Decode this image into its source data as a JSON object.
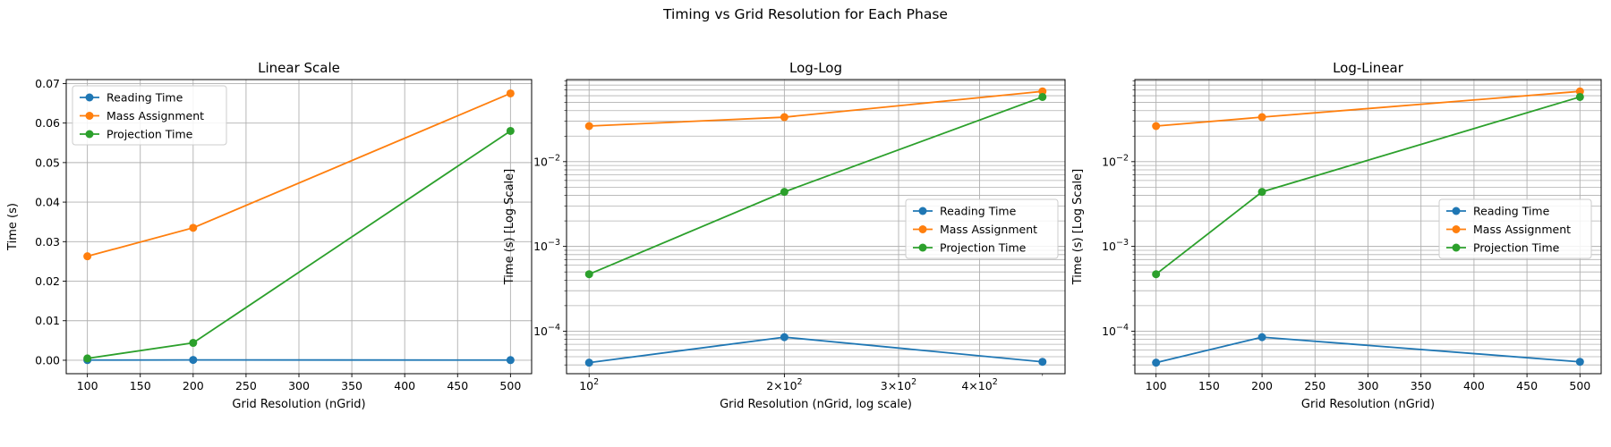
{
  "figure": {
    "suptitle": "Timing vs Grid Resolution for Each Phase"
  },
  "colors": {
    "reading": "#1f77b4",
    "mass": "#ff7f0e",
    "projection": "#2ca02c",
    "grid": "#b0b0b0"
  },
  "chart_data": [
    {
      "type": "line",
      "title": "Linear Scale",
      "xlabel": "Grid Resolution (nGrid)",
      "ylabel": "Time (s)",
      "xscale": "linear",
      "yscale": "linear",
      "xlim": [
        80,
        520
      ],
      "ylim": [
        -0.0034,
        0.071
      ],
      "xticks": [
        100,
        150,
        200,
        250,
        300,
        350,
        400,
        450,
        500
      ],
      "xticklabels": [
        "100",
        "150",
        "200",
        "250",
        "300",
        "350",
        "400",
        "450",
        "500"
      ],
      "yticks": [
        0,
        0.01,
        0.02,
        0.03,
        0.04,
        0.05,
        0.06,
        0.07
      ],
      "yticklabels": [
        "0.00",
        "0.01",
        "0.02",
        "0.03",
        "0.04",
        "0.05",
        "0.06",
        "0.07"
      ],
      "grid": true,
      "legend_position": "upper-left",
      "x": [
        100,
        200,
        500
      ],
      "series": [
        {
          "name": "Reading Time",
          "color_key": "reading",
          "values": [
            4.25e-05,
            8.5e-05,
            4.35e-05
          ]
        },
        {
          "name": "Mass Assignment",
          "color_key": "mass",
          "values": [
            0.0263,
            0.0335,
            0.0675
          ]
        },
        {
          "name": "Projection Time",
          "color_key": "projection",
          "values": [
            0.00047,
            0.0044,
            0.058
          ]
        }
      ]
    },
    {
      "type": "line",
      "title": "Log-Log",
      "xlabel": "Grid Resolution (nGrid, log scale)",
      "ylabel": "Time (s) [Log Scale]",
      "xscale": "log",
      "yscale": "log",
      "xlim": [
        92.3,
        541.7
      ],
      "ylim": [
        3.15e-05,
        0.093
      ],
      "xticks": [
        100,
        200,
        300,
        400
      ],
      "xticklabels": [
        "10^2",
        "2×10^2",
        "3×10^2",
        "4×10^2"
      ],
      "yticks": [
        0.0001,
        0.001,
        0.01
      ],
      "yticklabels": [
        "10^−4",
        "10^−3",
        "10^−2"
      ],
      "grid": true,
      "grid_minor": true,
      "legend_position": "center-right",
      "x": [
        100,
        200,
        500
      ],
      "series": [
        {
          "name": "Reading Time",
          "color_key": "reading",
          "values": [
            4.25e-05,
            8.5e-05,
            4.35e-05
          ]
        },
        {
          "name": "Mass Assignment",
          "color_key": "mass",
          "values": [
            0.0263,
            0.0335,
            0.0675
          ]
        },
        {
          "name": "Projection Time",
          "color_key": "projection",
          "values": [
            0.00047,
            0.0044,
            0.058
          ]
        }
      ]
    },
    {
      "type": "line",
      "title": "Log-Linear",
      "xlabel": "Grid Resolution (nGrid)",
      "ylabel": "Time (s) [Log Scale]",
      "xscale": "linear",
      "yscale": "log",
      "xlim": [
        80,
        520
      ],
      "ylim": [
        3.15e-05,
        0.093
      ],
      "xticks": [
        100,
        150,
        200,
        250,
        300,
        350,
        400,
        450,
        500
      ],
      "xticklabels": [
        "100",
        "150",
        "200",
        "250",
        "300",
        "350",
        "400",
        "450",
        "500"
      ],
      "yticks": [
        0.0001,
        0.001,
        0.01
      ],
      "yticklabels": [
        "10^−4",
        "10^−3",
        "10^−2"
      ],
      "grid": true,
      "grid_minor": true,
      "legend_position": "center-right",
      "x": [
        100,
        200,
        500
      ],
      "series": [
        {
          "name": "Reading Time",
          "color_key": "reading",
          "values": [
            4.25e-05,
            8.5e-05,
            4.35e-05
          ]
        },
        {
          "name": "Mass Assignment",
          "color_key": "mass",
          "values": [
            0.0263,
            0.0335,
            0.0675
          ]
        },
        {
          "name": "Projection Time",
          "color_key": "projection",
          "values": [
            0.00047,
            0.0044,
            0.058
          ]
        }
      ]
    }
  ]
}
